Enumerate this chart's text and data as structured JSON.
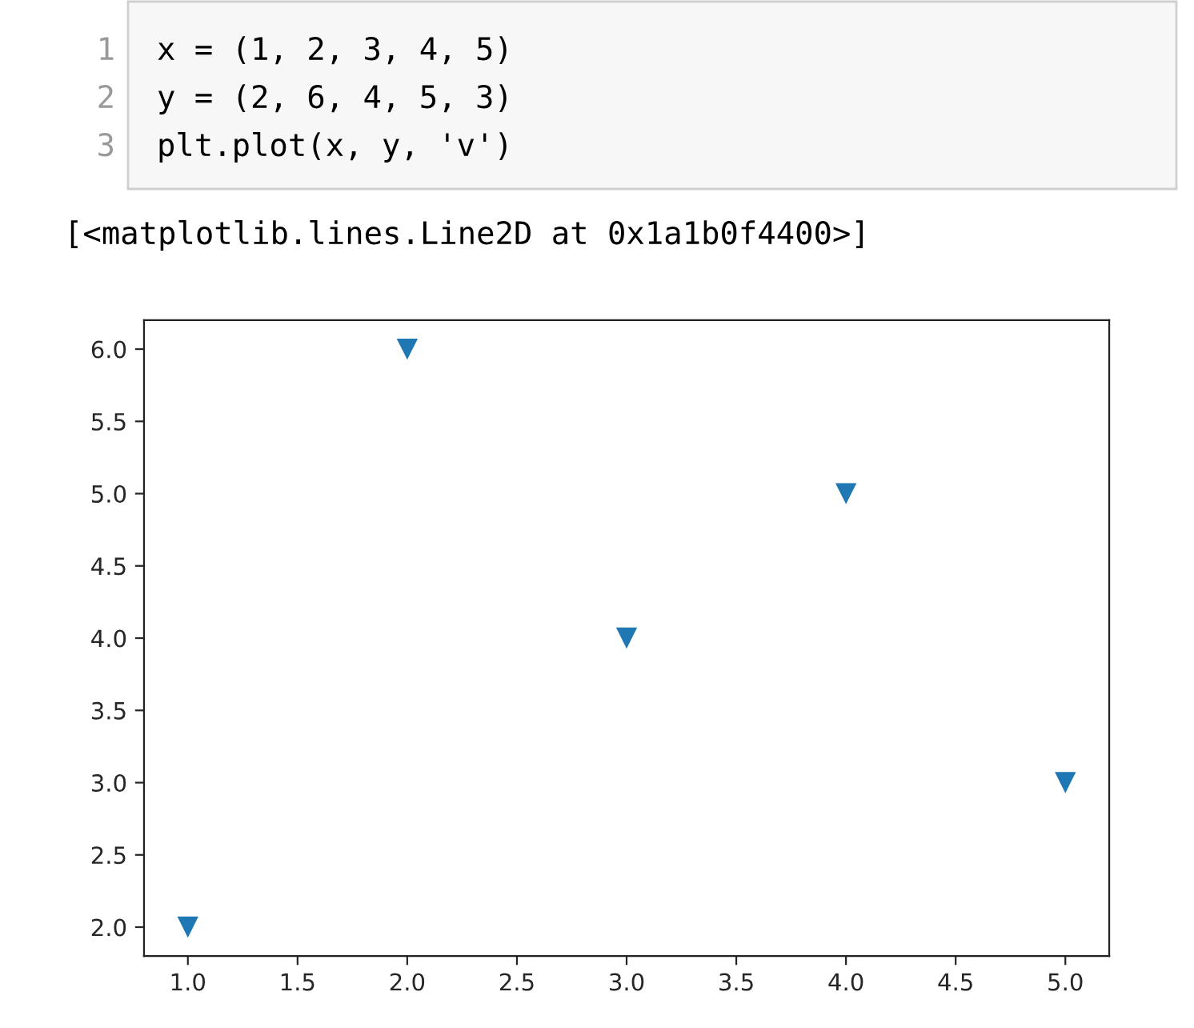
{
  "chart_data": {
    "type": "scatter",
    "annotations": [
      "1",
      "2",
      "3",
      "x = (1, 2, 3, 4, 5)",
      "y = (2, 6, 4, 5, 3)",
      "plt.plot(x, y, 'v')",
      "[<matplotlib.lines.Line2D at 0x1a1b0f4400>]"
    ],
    "x": [
      1,
      2,
      3,
      4,
      5
    ],
    "series": [
      {
        "color": "#1f77b4",
        "values": [
          2,
          6,
          4,
          5,
          3
        ]
      }
    ],
    "xlim": [
      0.8,
      5.2
    ],
    "ylim": [
      1.8,
      6.2
    ],
    "xticks": [
      {
        "value": 1,
        "label": "1.0"
      },
      1.5,
      {
        "value": 2,
        "label": "2.0"
      },
      2.5,
      {
        "value": 3,
        "label": "3.0"
      },
      3.5,
      {
        "value": 4,
        "label": "4.0"
      },
      4.5,
      {
        "value": 5,
        "label": "5.0"
      }
    ],
    "yticks": [
      {
        "value": 2,
        "label": "2.0"
      },
      2.5,
      {
        "value": 3,
        "label": "3.0"
      },
      3.5,
      {
        "value": 4,
        "label": "4.0"
      },
      4.5,
      {
        "value": 5,
        "label": "5.0"
      },
      5.5,
      {
        "value": 6,
        "label": "6.0"
      }
    ],
    "marker": "triangle",
    "grid": false,
    "legend": false
  }
}
